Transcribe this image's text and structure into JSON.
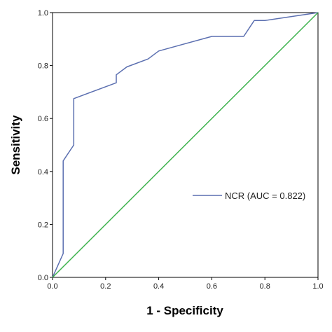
{
  "chart_data": {
    "type": "line",
    "xlabel": "1 - Specificity",
    "ylabel": "Sensitivity",
    "xlim": [
      0,
      1
    ],
    "ylim": [
      0,
      1
    ],
    "x_ticks": [
      "0.0",
      "0.2",
      "0.4",
      "0.6",
      "0.8",
      "1.0"
    ],
    "y_ticks": [
      "0.0",
      "0.2",
      "0.4",
      "0.6",
      "0.8",
      "1.0"
    ],
    "grid": false,
    "legend_position": "right-middle",
    "series": [
      {
        "name": "NCR (AUC = 0.822)",
        "color": "#5b6fb0",
        "points": [
          [
            0.0,
            0.0
          ],
          [
            0.04,
            0.09
          ],
          [
            0.04,
            0.44
          ],
          [
            0.08,
            0.5
          ],
          [
            0.08,
            0.675
          ],
          [
            0.24,
            0.735
          ],
          [
            0.24,
            0.765
          ],
          [
            0.28,
            0.795
          ],
          [
            0.36,
            0.825
          ],
          [
            0.4,
            0.855
          ],
          [
            0.6,
            0.91
          ],
          [
            0.72,
            0.91
          ],
          [
            0.76,
            0.97
          ],
          [
            0.8,
            0.97
          ],
          [
            1.0,
            1.0
          ]
        ]
      },
      {
        "color": "#3fb34f",
        "points": [
          [
            0.0,
            0.0
          ],
          [
            1.0,
            1.0
          ]
        ]
      }
    ],
    "legend": [
      {
        "label": "NCR (AUC = 0.822)",
        "color": "#5b6fb0"
      }
    ]
  }
}
